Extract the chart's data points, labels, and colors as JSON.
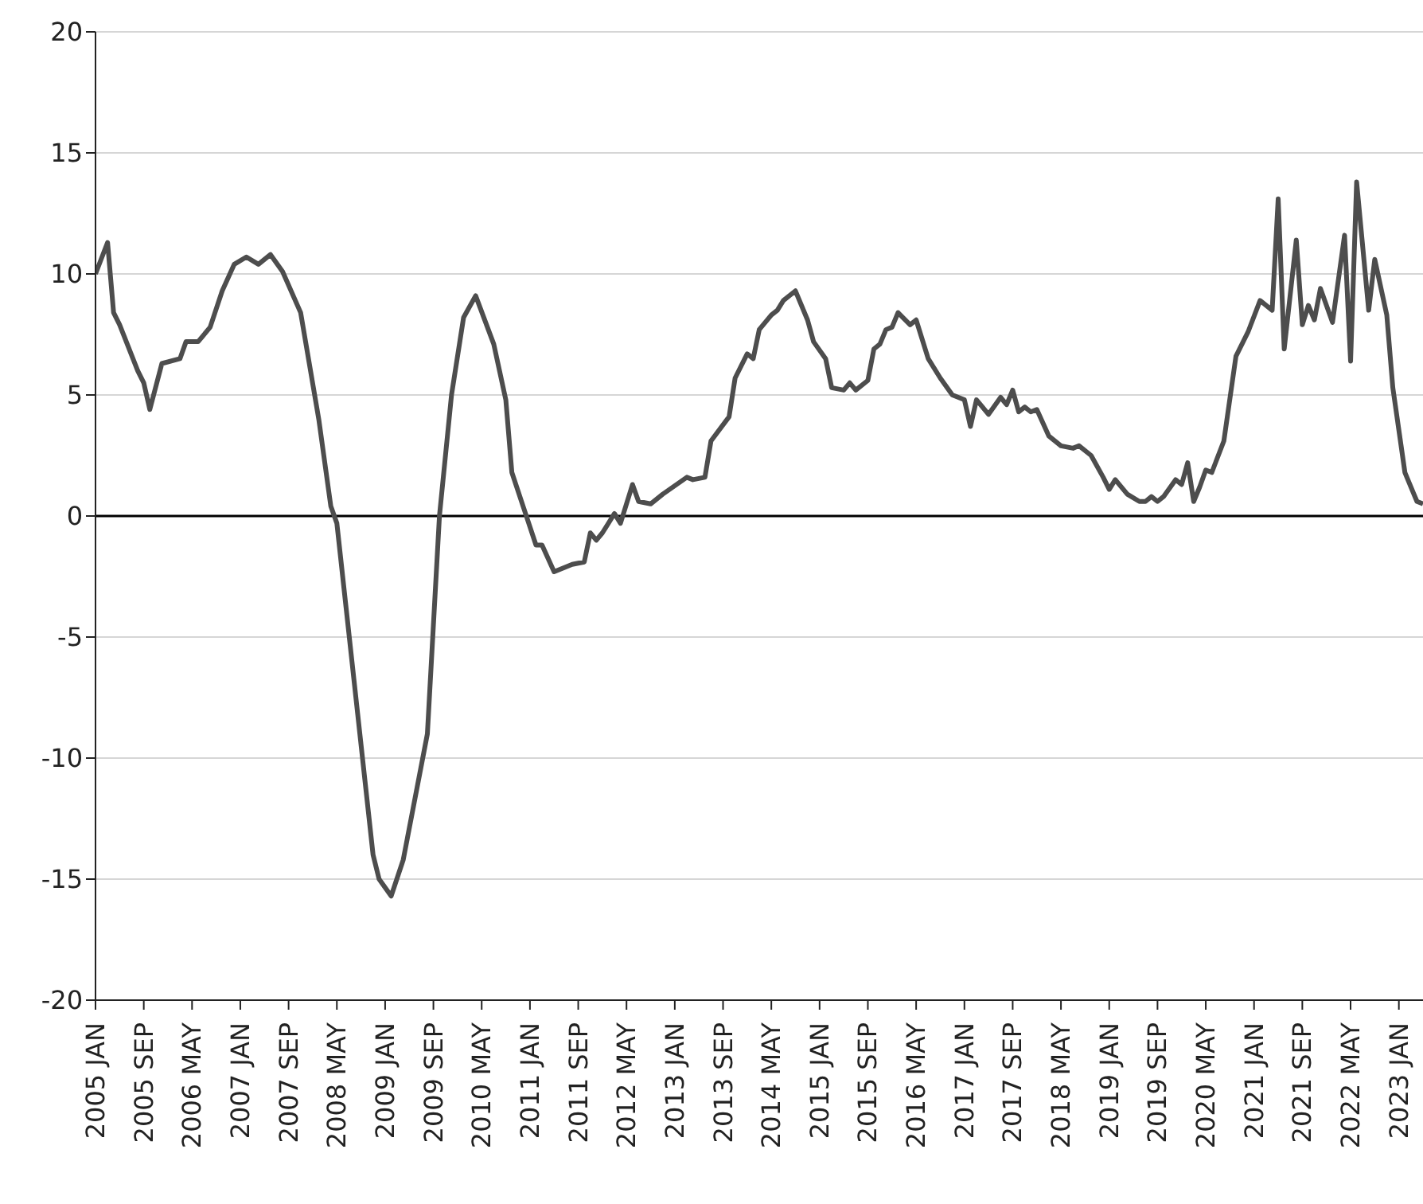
{
  "chart_data": {
    "type": "line",
    "x": [
      "2005-01",
      "2005-03",
      "2005-04",
      "2005-05",
      "2005-08",
      "2005-09",
      "2005-10",
      "2005-12",
      "2006-03",
      "2006-04",
      "2006-06",
      "2006-08",
      "2006-10",
      "2006-12",
      "2007-02",
      "2007-04",
      "2007-06",
      "2007-08",
      "2007-11",
      "2008-02",
      "2008-04",
      "2008-05",
      "2008-11",
      "2008-12",
      "2009-02",
      "2009-04",
      "2009-08",
      "2009-10",
      "2009-12",
      "2010-02",
      "2010-04",
      "2010-07",
      "2010-09",
      "2010-10",
      "2010-12",
      "2011-02",
      "2011-03",
      "2011-05",
      "2011-08",
      "2011-10",
      "2011-11",
      "2011-12",
      "2012-01",
      "2012-03",
      "2012-04",
      "2012-06",
      "2012-07",
      "2012-09",
      "2012-11",
      "2013-03",
      "2013-04",
      "2013-06",
      "2013-07",
      "2013-10",
      "2013-11",
      "2014-01",
      "2014-02",
      "2014-03",
      "2014-05",
      "2014-06",
      "2014-07",
      "2014-09",
      "2014-11",
      "2014-12",
      "2015-02",
      "2015-03",
      "2015-05",
      "2015-06",
      "2015-07",
      "2015-09",
      "2015-10",
      "2015-11",
      "2015-12",
      "2016-01",
      "2016-02",
      "2016-04",
      "2016-05",
      "2016-07",
      "2016-09",
      "2016-11",
      "2017-01",
      "2017-02",
      "2017-03",
      "2017-05",
      "2017-07",
      "2017-08",
      "2017-09",
      "2017-10",
      "2017-11",
      "2017-12",
      "2018-01",
      "2018-03",
      "2018-05",
      "2018-07",
      "2018-08",
      "2018-10",
      "2018-12",
      "2019-01",
      "2019-02",
      "2019-04",
      "2019-06",
      "2019-07",
      "2019-08",
      "2019-09",
      "2019-10",
      "2019-12",
      "2020-01",
      "2020-02",
      "2020-03",
      "2020-04",
      "2020-05",
      "2020-06",
      "2020-08",
      "2020-10",
      "2020-12",
      "2021-02",
      "2021-04",
      "2021-05",
      "2021-06",
      "2021-08",
      "2021-09",
      "2021-10",
      "2021-11",
      "2021-12",
      "2022-02",
      "2022-04",
      "2022-05",
      "2022-06",
      "2022-08",
      "2022-09",
      "2022-11",
      "2022-12",
      "2023-02",
      "2023-04",
      "2023-05"
    ],
    "series": [
      {
        "color": "#4d4d4d",
        "values": [
          10.0,
          11.3,
          8.4,
          7.9,
          6.0,
          5.5,
          4.4,
          6.3,
          6.5,
          7.2,
          7.2,
          7.8,
          9.3,
          10.4,
          10.7,
          10.4,
          10.8,
          10.1,
          8.4,
          4.0,
          0.4,
          -0.3,
          -14.0,
          -15.0,
          -15.7,
          -14.2,
          -9.0,
          0.0,
          5.0,
          8.2,
          9.1,
          7.1,
          4.8,
          1.8,
          0.3,
          -1.2,
          -1.2,
          -2.3,
          -2.0,
          -1.9,
          -0.7,
          -1.0,
          -0.7,
          0.1,
          -0.3,
          1.3,
          0.6,
          0.5,
          0.9,
          1.6,
          1.5,
          1.6,
          3.1,
          4.1,
          5.7,
          6.7,
          6.5,
          7.7,
          8.3,
          8.5,
          8.9,
          9.3,
          8.1,
          7.2,
          6.5,
          5.3,
          5.2,
          5.5,
          5.2,
          5.6,
          6.9,
          7.1,
          7.7,
          7.8,
          8.4,
          7.9,
          8.1,
          6.5,
          5.7,
          5.0,
          4.8,
          3.7,
          4.8,
          4.2,
          4.9,
          4.6,
          5.2,
          4.3,
          4.5,
          4.3,
          4.4,
          3.3,
          2.9,
          2.8,
          2.9,
          2.5,
          1.6,
          1.1,
          1.5,
          0.9,
          0.6,
          0.6,
          0.8,
          0.6,
          0.8,
          1.5,
          1.3,
          2.2,
          0.6,
          1.2,
          1.9,
          1.8,
          3.1,
          6.6,
          7.6,
          8.9,
          8.5,
          13.1,
          6.9,
          11.4,
          7.9,
          8.7,
          8.1,
          9.4,
          8.0,
          11.6,
          6.4,
          13.8,
          8.5,
          10.6,
          8.3,
          5.3,
          1.8,
          0.6,
          0.5
        ]
      }
    ],
    "xlim": [
      "2005-01",
      "2023-05"
    ],
    "xticks": [
      {
        "value": "2005-01",
        "label": "2005 JAN"
      },
      {
        "value": "2005-09",
        "label": "2005 SEP"
      },
      {
        "value": "2006-05",
        "label": "2006 MAY"
      },
      {
        "value": "2007-01",
        "label": "2007 JAN"
      },
      {
        "value": "2007-09",
        "label": "2007 SEP"
      },
      {
        "value": "2008-05",
        "label": "2008 MAY"
      },
      {
        "value": "2009-01",
        "label": "2009 JAN"
      },
      {
        "value": "2009-09",
        "label": "2009 SEP"
      },
      {
        "value": "2010-05",
        "label": "2010 MAY"
      },
      {
        "value": "2011-01",
        "label": "2011 JAN"
      },
      {
        "value": "2011-09",
        "label": "2011 SEP"
      },
      {
        "value": "2012-05",
        "label": "2012 MAY"
      },
      {
        "value": "2013-01",
        "label": "2013 JAN"
      },
      {
        "value": "2013-09",
        "label": "2013 SEP"
      },
      {
        "value": "2014-05",
        "label": "2014 MAY"
      },
      {
        "value": "2015-01",
        "label": "2015 JAN"
      },
      {
        "value": "2015-09",
        "label": "2015 SEP"
      },
      {
        "value": "2016-05",
        "label": "2016 MAY"
      },
      {
        "value": "2017-01",
        "label": "2017 JAN"
      },
      {
        "value": "2017-09",
        "label": "2017 SEP"
      },
      {
        "value": "2018-05",
        "label": "2018 MAY"
      },
      {
        "value": "2019-01",
        "label": "2019 JAN"
      },
      {
        "value": "2019-09",
        "label": "2019 SEP"
      },
      {
        "value": "2020-05",
        "label": "2020 MAY"
      },
      {
        "value": "2021-01",
        "label": "2021 JAN"
      },
      {
        "value": "2021-09",
        "label": "2021 SEP"
      },
      {
        "value": "2022-05",
        "label": "2022 MAY"
      },
      {
        "value": "2023-01",
        "label": "2023 JAN"
      }
    ],
    "ylim": [
      -20,
      20
    ],
    "yticks": [
      -20,
      -15,
      -10,
      -5,
      0,
      5,
      10,
      15,
      20
    ],
    "grid": "y",
    "ref_lines": [
      {
        "axis": "y",
        "value": 0,
        "color": "#000000"
      }
    ]
  }
}
